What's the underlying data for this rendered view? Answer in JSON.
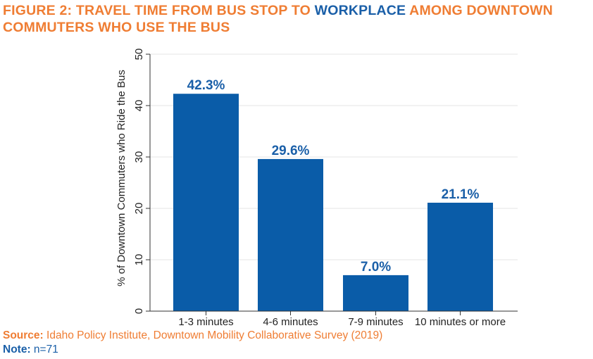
{
  "title": {
    "part1": "FIGURE 2: TRAVEL TIME FROM BUS STOP TO ",
    "highlight": "WORKPLACE",
    "part2": " AMONG DOWNTOWN COMMUTERS WHO USE THE BUS"
  },
  "chart_data": {
    "type": "bar",
    "categories": [
      "1-3 minutes",
      "4-6 minutes",
      "7-9 minutes",
      "10 minutes or more"
    ],
    "values": [
      42.3,
      29.6,
      7.0,
      21.1
    ],
    "data_labels": [
      "42.3%",
      "29.6%",
      "7.0%",
      "21.1%"
    ],
    "title": "FIGURE 2: TRAVEL TIME FROM BUS STOP TO WORKPLACE AMONG DOWNTOWN COMMUTERS WHO USE THE BUS",
    "xlabel": "",
    "ylabel": "% of Downtown Commuters who Ride the Bus",
    "ylim": [
      0,
      50
    ],
    "yticks": [
      0,
      10,
      20,
      30,
      40,
      50
    ],
    "grid": true,
    "bar_color": "#0a5ca8",
    "label_color": "#1a5fa8"
  },
  "footer": {
    "source_label": "Source:",
    "source_text": "Idaho Policy Institute, Downtown Mobility Collaborative Survey (2019)",
    "note_label": "Note:",
    "note_text": "n=71"
  },
  "colors": {
    "orange": "#ef7d33",
    "blue": "#1a5fa8"
  }
}
